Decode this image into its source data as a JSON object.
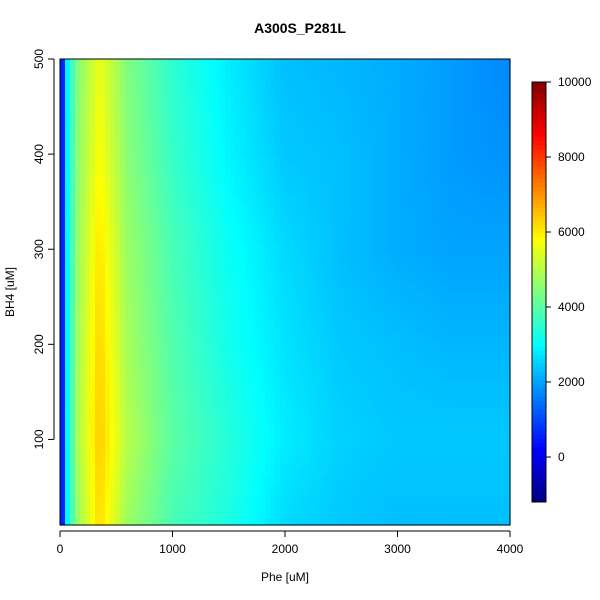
{
  "chart_data": {
    "type": "heatmap",
    "title": "A300S_P281L",
    "xlabel": "Phe [uM]",
    "ylabel": "BH4 [uM]",
    "xlim": [
      0,
      4000
    ],
    "ylim": [
      10,
      500
    ],
    "x_ticks": [
      0,
      1000,
      2000,
      3000,
      4000
    ],
    "y_ticks": [
      100,
      200,
      300,
      400,
      500
    ],
    "colorbar": {
      "min": -1200,
      "max": 10000,
      "ticks": [
        0,
        2000,
        4000,
        6000,
        8000,
        10000
      ],
      "colors": [
        "#00007f",
        "#0000ff",
        "#007fff",
        "#00ffff",
        "#7fff7f",
        "#ffff00",
        "#ff7f00",
        "#ff0000",
        "#7f0000"
      ]
    },
    "grid": false,
    "legend": "right colorbar",
    "value_grid": {
      "x": [
        0,
        50,
        150,
        350,
        600,
        1000,
        1500,
        2000,
        2500,
        3000,
        3500,
        4000
      ],
      "y": [
        10,
        100,
        200,
        300,
        400,
        500
      ],
      "z": [
        [
          -1000,
          2600,
          4600,
          6200,
          4700,
          3800,
          3300,
          2600,
          2400,
          2300,
          2300,
          2300
        ],
        [
          -1000,
          2600,
          4800,
          6400,
          5000,
          4000,
          3400,
          2800,
          2500,
          2400,
          2400,
          2400
        ],
        [
          -1000,
          2600,
          4700,
          6300,
          4800,
          3900,
          3200,
          2700,
          2400,
          2300,
          2200,
          2200
        ],
        [
          -1000,
          2600,
          4600,
          6100,
          4700,
          3800,
          3100,
          2600,
          2300,
          2100,
          2000,
          2000
        ],
        [
          -1000,
          2600,
          4500,
          5800,
          4500,
          3600,
          2900,
          2400,
          2300,
          2100,
          1900,
          1800
        ],
        [
          -1000,
          2600,
          4400,
          5600,
          4400,
          3500,
          2800,
          2300,
          2200,
          2100,
          1900,
          1700
        ]
      ]
    }
  }
}
